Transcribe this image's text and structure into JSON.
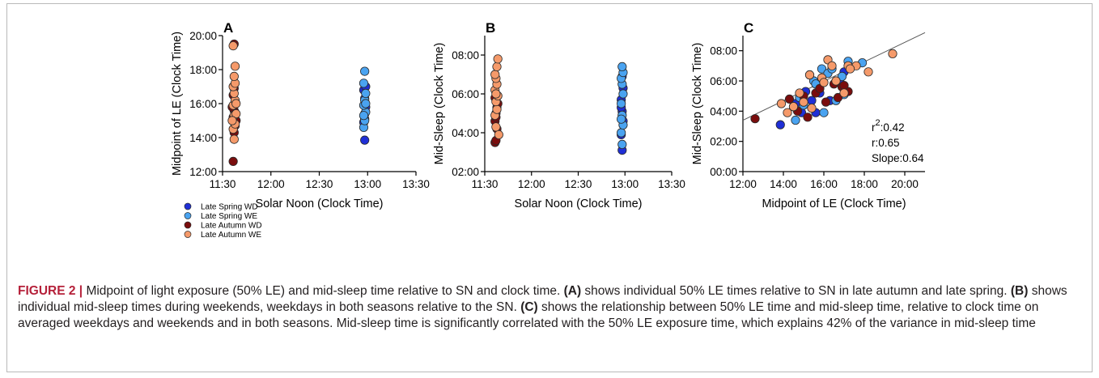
{
  "colors": {
    "late_spring_wd": "#1f2fd6",
    "late_spring_we": "#4aa3f0",
    "late_autumn_wd": "#7a0d0d",
    "late_autumn_we": "#f59a6a",
    "marker_edge": "#2a2a2a",
    "axis": "#000000",
    "fit_line": "#555555",
    "caption_label": "#b5213a"
  },
  "legend": {
    "placement": "bottom-left",
    "items": [
      {
        "key": "late_spring_wd",
        "label": "Late Spring WD"
      },
      {
        "key": "late_spring_we",
        "label": "Late Spring WE"
      },
      {
        "key": "late_autumn_wd",
        "label": "Late Autumn WD"
      },
      {
        "key": "late_autumn_we",
        "label": "Late Autumn WE"
      }
    ]
  },
  "caption": {
    "label": "FIGURE 2 |",
    "intro": " Midpoint of light exposure (50% LE) and mid-sleep time relative to SN and clock time. ",
    "ref_a": "(A)",
    "text_a": " shows individual 50% LE times relative to SN in late autumn and late spring. ",
    "ref_b": "(B)",
    "text_b": " shows individual mid-sleep times during weekends, weekdays in both seasons relative to the SN. ",
    "ref_c": "(C)",
    "text_c": " shows the relationship between 50% LE time and mid-sleep time, relative to clock time on averaged weekdays and weekends and in both seasons. Mid-sleep time is significantly correlated with the 50% LE exposure time, which explains 42% of the variance in mid-sleep time"
  },
  "chart_data": [
    {
      "type": "scatter",
      "panel": "A",
      "xlabel": "Solar Noon (Clock Time)",
      "ylabel": "Midpoint of LE (Clock Time)",
      "xlim": [
        11.5,
        13.5
      ],
      "ylim": [
        12,
        20
      ],
      "xticks": [
        11.5,
        12.0,
        12.5,
        13.0,
        13.5
      ],
      "xtick_labels": [
        "11:30",
        "12:00",
        "12:30",
        "13:00",
        "13:30"
      ],
      "yticks": [
        12,
        14,
        16,
        18,
        20
      ],
      "ytick_labels": [
        "12:00",
        "14:00",
        "16:00",
        "18:00",
        "20:00"
      ],
      "grid": false,
      "series": [
        {
          "name": "Late Spring WD",
          "key": "late_spring_wd",
          "points": [
            [
              12.97,
              13.85
            ],
            [
              12.96,
              14.9
            ],
            [
              12.97,
              15.4
            ],
            [
              12.98,
              15.8
            ],
            [
              12.97,
              16.3
            ],
            [
              12.96,
              16.8
            ],
            [
              12.98,
              17.0
            ],
            [
              12.97,
              15.1
            ]
          ]
        },
        {
          "name": "Late Spring WE",
          "key": "late_spring_we",
          "points": [
            [
              12.96,
              14.6
            ],
            [
              12.97,
              15.0
            ],
            [
              12.98,
              15.5
            ],
            [
              12.96,
              15.9
            ],
            [
              12.97,
              16.2
            ],
            [
              12.98,
              16.6
            ],
            [
              12.96,
              17.2
            ],
            [
              12.97,
              17.9
            ],
            [
              12.98,
              16.0
            ],
            [
              12.96,
              15.3
            ]
          ]
        },
        {
          "name": "Late Autumn WD",
          "key": "late_autumn_wd",
          "points": [
            [
              11.61,
              12.6
            ],
            [
              11.62,
              14.3
            ],
            [
              11.63,
              14.7
            ],
            [
              11.61,
              15.2
            ],
            [
              11.62,
              15.6
            ],
            [
              11.63,
              16.1
            ],
            [
              11.61,
              16.5
            ],
            [
              11.62,
              16.9
            ],
            [
              11.64,
              15.0
            ],
            [
              11.6,
              15.8
            ],
            [
              11.62,
              19.5
            ]
          ]
        },
        {
          "name": "Late Autumn WE",
          "key": "late_autumn_we",
          "points": [
            [
              11.62,
              13.9
            ],
            [
              11.61,
              14.5
            ],
            [
              11.63,
              14.8
            ],
            [
              11.62,
              15.3
            ],
            [
              11.64,
              15.4
            ],
            [
              11.61,
              15.9
            ],
            [
              11.63,
              16.2
            ],
            [
              11.62,
              16.6
            ],
            [
              11.61,
              17.0
            ],
            [
              11.63,
              17.2
            ],
            [
              11.62,
              17.6
            ],
            [
              11.63,
              18.2
            ],
            [
              11.61,
              19.4
            ],
            [
              11.64,
              16.0
            ],
            [
              11.6,
              15.0
            ]
          ]
        }
      ]
    },
    {
      "type": "scatter",
      "panel": "B",
      "xlabel": "Solar Noon (Clock Time)",
      "ylabel": "Mid-Sleep (Clock Time)",
      "xlim": [
        11.5,
        13.5
      ],
      "ylim": [
        2,
        9
      ],
      "xticks": [
        11.5,
        12.0,
        12.5,
        13.0,
        13.5
      ],
      "xtick_labels": [
        "11:30",
        "12:00",
        "12:30",
        "13:00",
        "13:30"
      ],
      "yticks": [
        2,
        4,
        6,
        8
      ],
      "ytick_labels": [
        "02:00",
        "04:00",
        "06:00",
        "08:00"
      ],
      "grid": false,
      "series": [
        {
          "name": "Late Spring WD",
          "key": "late_spring_wd",
          "points": [
            [
              12.97,
              3.1
            ],
            [
              12.96,
              3.9
            ],
            [
              12.98,
              4.6
            ],
            [
              12.97,
              5.1
            ],
            [
              12.96,
              5.7
            ],
            [
              12.98,
              6.3
            ],
            [
              12.97,
              6.9
            ],
            [
              12.96,
              5.3
            ]
          ]
        },
        {
          "name": "Late Spring WE",
          "key": "late_spring_we",
          "points": [
            [
              12.97,
              3.4
            ],
            [
              12.96,
              4.0
            ],
            [
              12.98,
              4.4
            ],
            [
              12.97,
              4.9
            ],
            [
              12.96,
              5.5
            ],
            [
              12.98,
              6.0
            ],
            [
              12.97,
              6.5
            ],
            [
              12.96,
              6.8
            ],
            [
              12.98,
              7.1
            ],
            [
              12.97,
              7.4
            ],
            [
              12.96,
              4.7
            ]
          ]
        },
        {
          "name": "Late Autumn WD",
          "key": "late_autumn_wd",
          "points": [
            [
              11.61,
              3.5
            ],
            [
              11.62,
              3.6
            ],
            [
              11.63,
              4.2
            ],
            [
              11.61,
              4.6
            ],
            [
              11.62,
              5.0
            ],
            [
              11.63,
              5.3
            ],
            [
              11.61,
              5.8
            ],
            [
              11.62,
              4.8
            ],
            [
              11.64,
              5.5
            ]
          ]
        },
        {
          "name": "Late Autumn WE",
          "key": "late_autumn_we",
          "points": [
            [
              11.65,
              3.9
            ],
            [
              11.62,
              4.3
            ],
            [
              11.61,
              4.9
            ],
            [
              11.63,
              5.2
            ],
            [
              11.62,
              5.6
            ],
            [
              11.64,
              5.9
            ],
            [
              11.61,
              6.2
            ],
            [
              11.63,
              6.5
            ],
            [
              11.62,
              6.8
            ],
            [
              11.61,
              7.0
            ],
            [
              11.63,
              7.4
            ],
            [
              11.64,
              7.8
            ],
            [
              11.62,
              6.0
            ]
          ]
        }
      ]
    },
    {
      "type": "scatter",
      "panel": "C",
      "xlabel": "Midpoint of LE (Clock Time)",
      "ylabel": "Mid-Sleep (Clock Time)",
      "xlim": [
        12,
        21
      ],
      "ylim": [
        0,
        9
      ],
      "xticks": [
        12,
        14,
        16,
        18,
        20
      ],
      "xtick_labels": [
        "12:00",
        "14:00",
        "16:00",
        "18:00",
        "20:00"
      ],
      "yticks": [
        0,
        2,
        4,
        6,
        8
      ],
      "ytick_labels": [
        "00:00",
        "02:00",
        "04:00",
        "06:00",
        "08:00"
      ],
      "grid": false,
      "fit_line": {
        "x": [
          12,
          21
        ],
        "y": [
          3.4,
          9.2
        ]
      },
      "annotations": {
        "r2_prefix": "r",
        "r2_sup": "2",
        "r2_value": ":0.42",
        "r": "r:0.65",
        "slope": "Slope:0.64"
      },
      "series": [
        {
          "name": "Late Spring WD",
          "key": "late_spring_wd",
          "points": [
            [
              13.85,
              3.1
            ],
            [
              14.9,
              3.9
            ],
            [
              15.4,
              4.7
            ],
            [
              15.8,
              5.2
            ],
            [
              16.3,
              4.7
            ],
            [
              16.8,
              5.9
            ],
            [
              17.0,
              6.6
            ],
            [
              15.1,
              5.3
            ],
            [
              14.6,
              4.5
            ],
            [
              15.6,
              3.9
            ]
          ]
        },
        {
          "name": "Late Spring WE",
          "key": "late_spring_we",
          "points": [
            [
              14.6,
              3.4
            ],
            [
              15.0,
              4.4
            ],
            [
              15.5,
              6.0
            ],
            [
              15.9,
              6.8
            ],
            [
              16.2,
              6.5
            ],
            [
              16.6,
              4.7
            ],
            [
              17.2,
              7.3
            ],
            [
              17.9,
              7.2
            ],
            [
              16.0,
              3.9
            ],
            [
              15.3,
              6.4
            ],
            [
              16.4,
              6.8
            ],
            [
              17.0,
              5.1
            ],
            [
              15.6,
              5.8
            ],
            [
              14.8,
              4.9
            ],
            [
              16.9,
              6.3
            ]
          ]
        },
        {
          "name": "Late Autumn WD",
          "key": "late_autumn_wd",
          "points": [
            [
              12.6,
              3.5
            ],
            [
              14.3,
              4.8
            ],
            [
              14.7,
              4.0
            ],
            [
              15.2,
              3.6
            ],
            [
              15.6,
              5.2
            ],
            [
              16.1,
              4.6
            ],
            [
              16.5,
              5.8
            ],
            [
              16.9,
              5.6
            ],
            [
              15.0,
              5.0
            ],
            [
              15.8,
              5.5
            ],
            [
              17.2,
              5.3
            ],
            [
              14.5,
              4.3
            ],
            [
              16.7,
              4.9
            ],
            [
              17.0,
              5.7
            ]
          ]
        },
        {
          "name": "Late Autumn WE",
          "key": "late_autumn_we",
          "points": [
            [
              13.9,
              4.5
            ],
            [
              14.5,
              4.3
            ],
            [
              14.8,
              5.2
            ],
            [
              15.3,
              6.4
            ],
            [
              15.4,
              4.2
            ],
            [
              15.9,
              6.2
            ],
            [
              16.2,
              7.4
            ],
            [
              16.6,
              6.0
            ],
            [
              17.0,
              5.2
            ],
            [
              17.2,
              7.0
            ],
            [
              17.6,
              7.0
            ],
            [
              18.2,
              6.6
            ],
            [
              19.4,
              7.8
            ],
            [
              16.0,
              5.9
            ],
            [
              15.0,
              4.6
            ],
            [
              16.4,
              7.0
            ],
            [
              17.3,
              6.8
            ],
            [
              14.2,
              3.9
            ]
          ]
        }
      ]
    }
  ]
}
